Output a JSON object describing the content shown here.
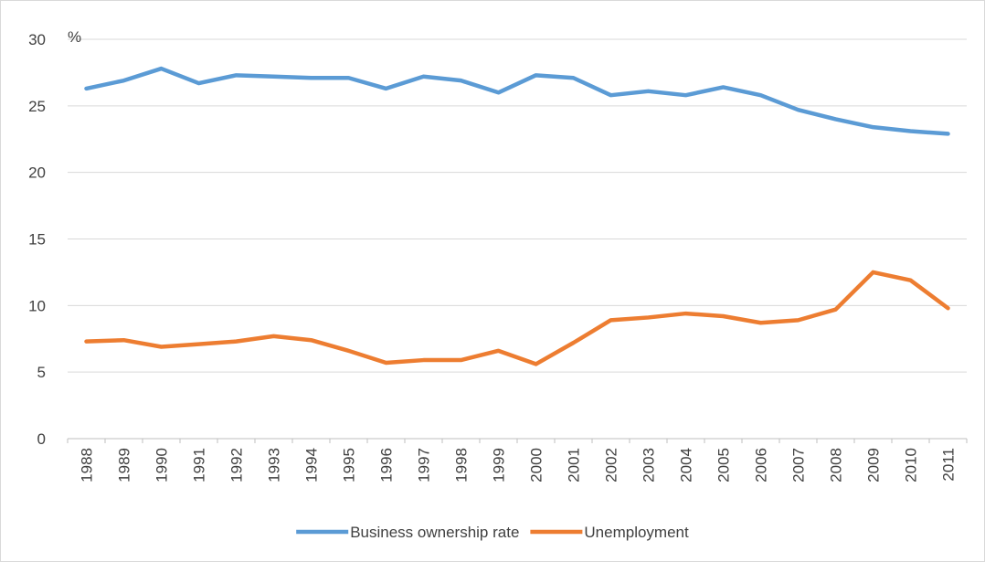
{
  "chart_data": {
    "type": "line",
    "ylabel": "%",
    "ylim": [
      0,
      30
    ],
    "yticks": [
      0,
      5,
      10,
      15,
      20,
      25,
      30
    ],
    "grid": true,
    "legend_position": "bottom",
    "categories": [
      "1988",
      "1989",
      "1990",
      "1991",
      "1992",
      "1993",
      "1994",
      "1995",
      "1996",
      "1997",
      "1998",
      "1999",
      "2000",
      "2001",
      "2002",
      "2003",
      "2004",
      "2005",
      "2006",
      "2007",
      "2008",
      "2009",
      "2010",
      "2011"
    ],
    "series": [
      {
        "name": "Business ownership rate",
        "color": "#5b9bd5",
        "values": [
          26.3,
          26.9,
          27.8,
          26.7,
          27.3,
          27.2,
          27.1,
          27.1,
          26.3,
          27.2,
          26.9,
          26.0,
          27.3,
          27.1,
          25.8,
          26.1,
          25.8,
          26.4,
          25.8,
          24.7,
          24.0,
          23.4,
          23.1,
          22.9
        ]
      },
      {
        "name": "Unemployment",
        "color": "#ed7d31",
        "values": [
          7.3,
          7.4,
          6.9,
          7.1,
          7.3,
          7.7,
          7.4,
          6.6,
          5.7,
          5.9,
          5.9,
          6.6,
          5.6,
          7.2,
          8.9,
          9.1,
          9.4,
          9.2,
          8.7,
          8.9,
          9.7,
          12.5,
          11.9,
          9.8
        ]
      }
    ]
  }
}
